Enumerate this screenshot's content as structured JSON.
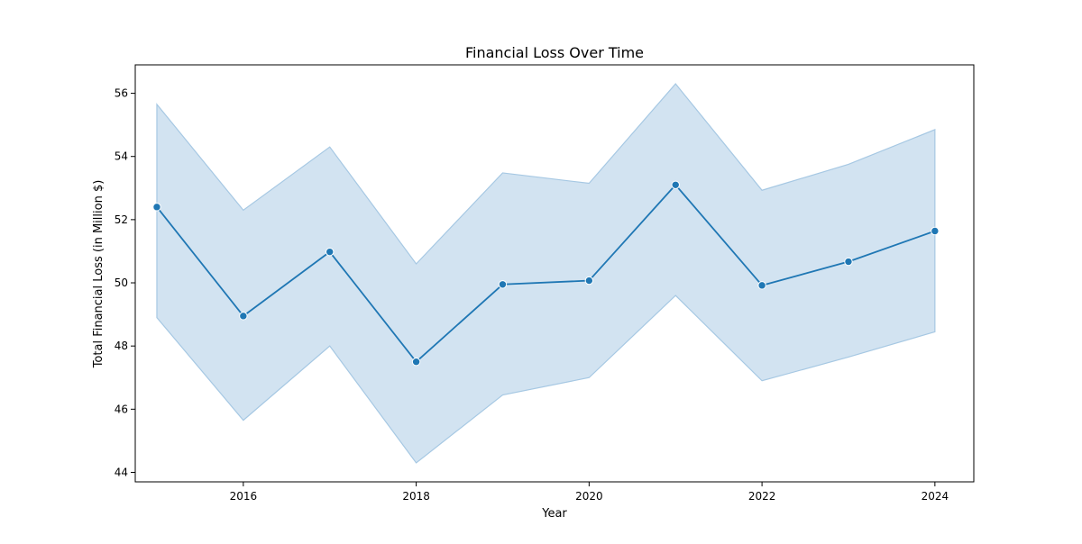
{
  "chart_data": {
    "type": "line",
    "title": "Financial Loss Over Time",
    "xlabel": "Year",
    "ylabel": "Total Financial Loss (in Million $)",
    "x": [
      2015,
      2016,
      2017,
      2018,
      2019,
      2020,
      2021,
      2022,
      2023,
      2024
    ],
    "series": [
      {
        "values": [
          52.4,
          48.95,
          50.98,
          47.5,
          49.95,
          50.07,
          53.1,
          49.92,
          50.67,
          51.64
        ],
        "ci_lower": [
          48.9,
          45.65,
          48.0,
          44.3,
          46.45,
          47.0,
          49.6,
          46.9,
          47.65,
          48.45
        ],
        "ci_upper": [
          55.65,
          52.3,
          54.3,
          50.6,
          53.48,
          53.15,
          56.3,
          52.93,
          53.75,
          54.85
        ],
        "line_color": "#1f77b4",
        "band_color": "#a6c8e3"
      }
    ],
    "xlim": [
      2014.75,
      2024.45
    ],
    "ylim": [
      43.7,
      56.9
    ],
    "x_ticks": [
      2016,
      2018,
      2020,
      2022,
      2024
    ],
    "y_ticks": [
      44,
      46,
      48,
      50,
      52,
      54,
      56
    ],
    "grid": false,
    "legend": "none"
  }
}
